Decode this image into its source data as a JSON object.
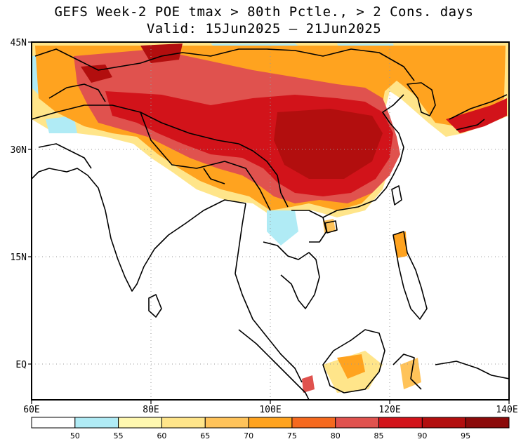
{
  "title": {
    "line1": "GEFS Week-2 POE tmax > 80th Pctle., > 2 Cons. days",
    "line2": "Valid: 15Jun2025 – 21Jun2025"
  },
  "axes": {
    "lat_labels": [
      "45N",
      "30N",
      "15N",
      "EQ"
    ],
    "lon_labels": [
      "60E",
      "80E",
      "100E",
      "120E",
      "140E"
    ]
  },
  "legend": {
    "bins": [
      {
        "color": "#ffffff"
      },
      {
        "color": "#b0ebf5"
      },
      {
        "color": "#fff8b0"
      },
      {
        "color": "#ffe58a"
      },
      {
        "color": "#ffc35a"
      },
      {
        "color": "#ffa31f"
      },
      {
        "color": "#f5691e"
      },
      {
        "color": "#e0524e"
      },
      {
        "color": "#d2131a"
      },
      {
        "color": "#b20e0e"
      },
      {
        "color": "#8b0a0a"
      }
    ],
    "labels": [
      "50",
      "55",
      "60",
      "65",
      "70",
      "75",
      "80",
      "85",
      "90",
      "95"
    ]
  }
}
